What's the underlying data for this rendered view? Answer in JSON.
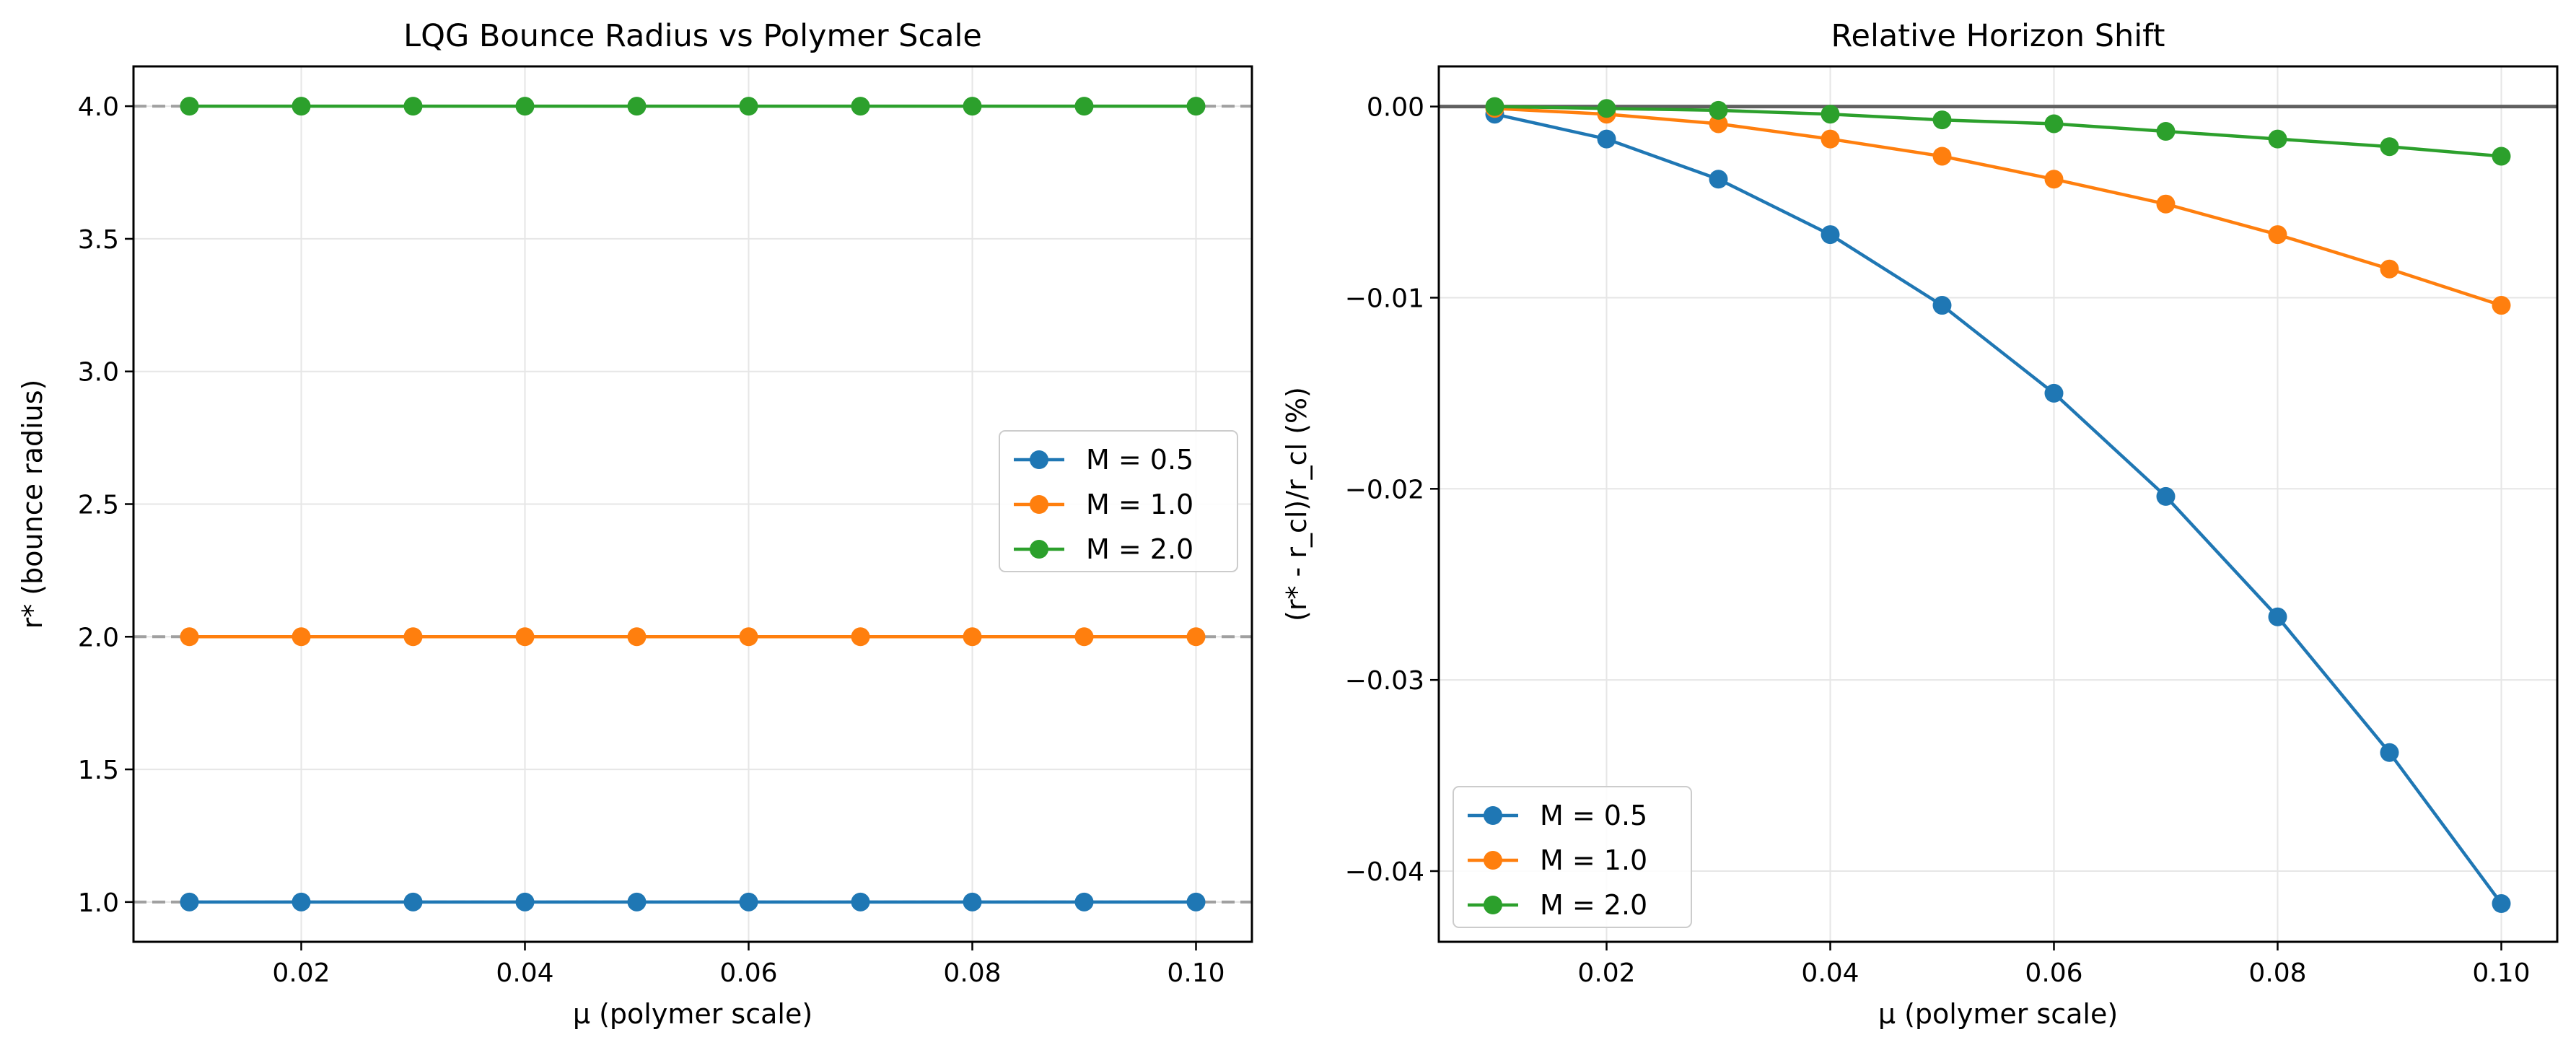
{
  "chart_data": [
    {
      "type": "line",
      "title": "LQG Bounce Radius vs Polymer Scale",
      "xlabel": "μ (polymer scale)",
      "ylabel": "r* (bounce radius)",
      "xlim": [
        0.005,
        0.105
      ],
      "ylim": [
        0.85,
        4.15
      ],
      "xticks": [
        0.02,
        0.04,
        0.06,
        0.08,
        0.1
      ],
      "xtick_labels": [
        "0.02",
        "0.04",
        "0.06",
        "0.08",
        "0.10"
      ],
      "yticks": [
        1.0,
        1.5,
        2.0,
        2.5,
        3.0,
        3.5,
        4.0
      ],
      "ytick_labels": [
        "1.0",
        "1.5",
        "2.0",
        "2.5",
        "3.0",
        "3.5",
        "4.0"
      ],
      "grid": true,
      "legend_position": "center-right",
      "reference_lines": [
        {
          "y": 1.0,
          "style": "dashed",
          "color": "#a0a0a0"
        },
        {
          "y": 2.0,
          "style": "dashed",
          "color": "#a0a0a0"
        },
        {
          "y": 4.0,
          "style": "dashed",
          "color": "#a0a0a0"
        }
      ],
      "x": [
        0.01,
        0.02,
        0.03,
        0.04,
        0.05,
        0.06,
        0.07,
        0.08,
        0.09,
        0.1
      ],
      "series": [
        {
          "name": "M = 0.5",
          "color": "#1f77b4",
          "values": [
            1.0,
            1.0,
            1.0,
            1.0,
            1.0,
            1.0,
            1.0,
            1.0,
            1.0,
            1.0
          ]
        },
        {
          "name": "M = 1.0",
          "color": "#ff7f0e",
          "values": [
            2.0,
            2.0,
            2.0,
            2.0,
            2.0,
            2.0,
            2.0,
            2.0,
            2.0,
            2.0
          ]
        },
        {
          "name": "M = 2.0",
          "color": "#2ca02c",
          "values": [
            4.0,
            4.0,
            4.0,
            4.0,
            4.0,
            4.0,
            4.0,
            4.0,
            4.0,
            4.0
          ]
        }
      ]
    },
    {
      "type": "line",
      "title": "Relative Horizon Shift",
      "xlabel": "μ (polymer scale)",
      "ylabel": "(r* - r_cl)/r_cl (%)",
      "xlim": [
        0.005,
        0.105
      ],
      "ylim": [
        -0.0437,
        0.0021
      ],
      "xticks": [
        0.02,
        0.04,
        0.06,
        0.08,
        0.1
      ],
      "xtick_labels": [
        "0.02",
        "0.04",
        "0.06",
        "0.08",
        "0.10"
      ],
      "yticks": [
        0.0,
        -0.01,
        -0.02,
        -0.03,
        -0.04
      ],
      "ytick_labels": [
        "0.00",
        "−0.01",
        "−0.02",
        "−0.03",
        "−0.04"
      ],
      "grid": true,
      "legend_position": "bottom-left",
      "reference_lines": [
        {
          "y": 0.0,
          "style": "solid",
          "color": "#606060"
        }
      ],
      "x": [
        0.01,
        0.02,
        0.03,
        0.04,
        0.05,
        0.06,
        0.07,
        0.08,
        0.09,
        0.1
      ],
      "series": [
        {
          "name": "M = 0.5",
          "color": "#1f77b4",
          "values": [
            -0.0004,
            -0.0017,
            -0.0038,
            -0.0067,
            -0.0104,
            -0.015,
            -0.0204,
            -0.0267,
            -0.0338,
            -0.0417
          ]
        },
        {
          "name": "M = 1.0",
          "color": "#ff7f0e",
          "values": [
            -0.0001,
            -0.0004,
            -0.0009,
            -0.0017,
            -0.0026,
            -0.0038,
            -0.0051,
            -0.0067,
            -0.0085,
            -0.0104
          ]
        },
        {
          "name": "M = 2.0",
          "color": "#2ca02c",
          "values": [
            0.0,
            -0.0001,
            -0.0002,
            -0.0004,
            -0.0007,
            -0.0009,
            -0.0013,
            -0.0017,
            -0.0021,
            -0.0026
          ]
        }
      ]
    }
  ]
}
